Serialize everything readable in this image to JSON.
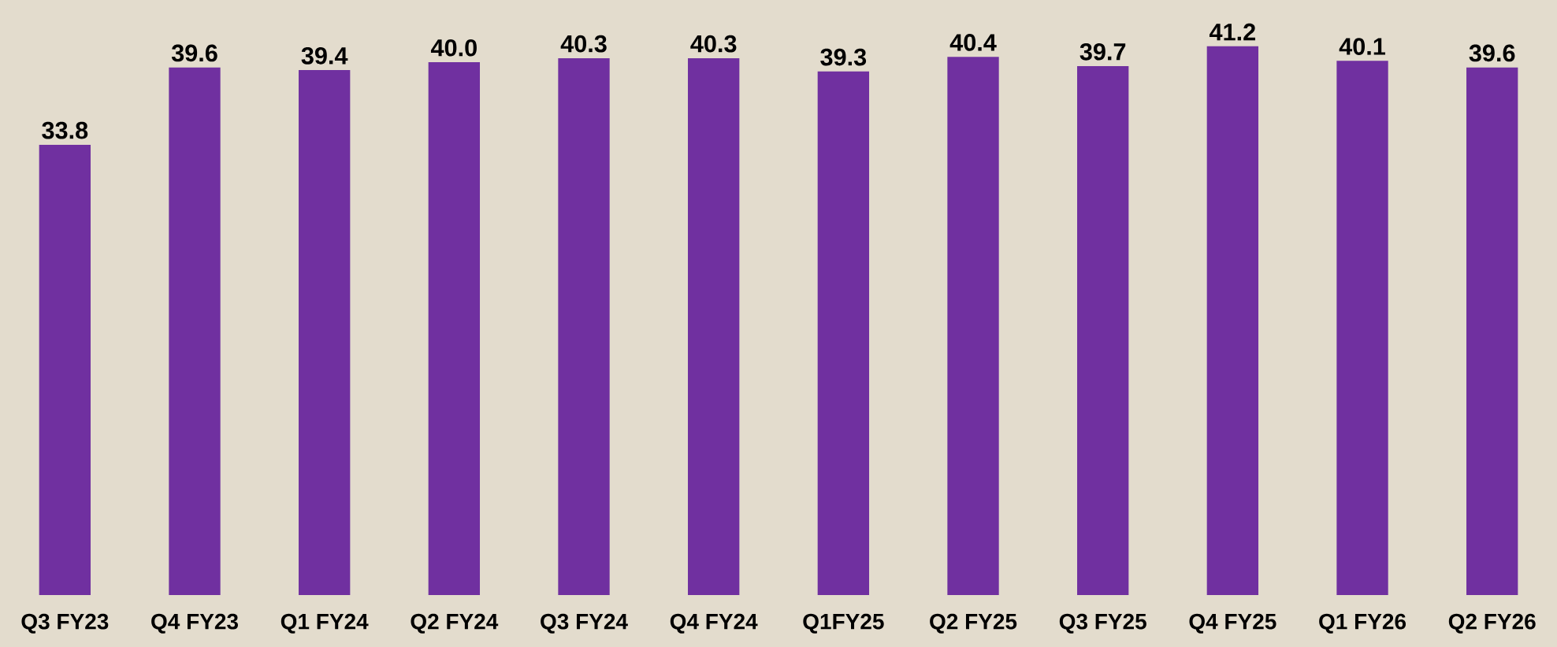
{
  "chart_data": {
    "type": "bar",
    "categories": [
      "Q3 FY23",
      "Q4 FY23",
      "Q1 FY24",
      "Q2 FY24",
      "Q3 FY24",
      "Q4 FY24",
      "Q1FY25",
      "Q2 FY25",
      "Q3 FY25",
      "Q4 FY25",
      "Q1 FY26",
      "Q2 FY26"
    ],
    "values": [
      33.8,
      39.6,
      39.4,
      40.0,
      40.3,
      40.3,
      39.3,
      40.4,
      39.7,
      41.2,
      40.1,
      39.6
    ],
    "value_labels": [
      "33.8",
      "39.6",
      "39.4",
      "40.0",
      "40.3",
      "40.3",
      "39.3",
      "40.4",
      "39.7",
      "41.2",
      "40.1",
      "39.6"
    ],
    "color": "#7030a0"
  }
}
